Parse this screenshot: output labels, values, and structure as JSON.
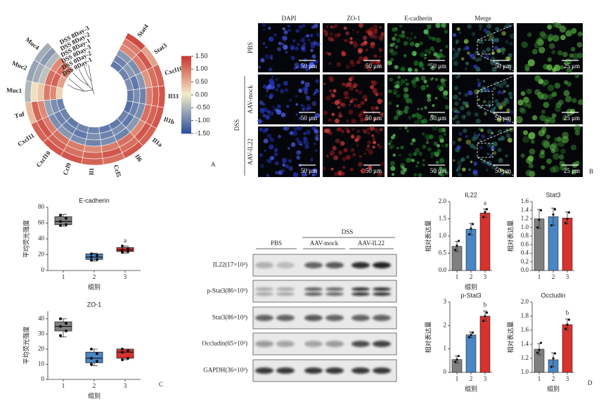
{
  "panel_labels": [
    "A",
    "B",
    "C",
    "D"
  ],
  "microscopy": {
    "columns": [
      "DAPI",
      "ZO-1",
      "E-cadherin",
      "Merge"
    ],
    "rows": [
      "PBS",
      "AAV-mock",
      "AAV-IL22"
    ],
    "group": "DSS",
    "scale_bars": [
      [
        "50 μm",
        "50 μm",
        "50 μm",
        "50 μm",
        "25 μm"
      ],
      [
        "50 μm",
        "50 μm",
        "50 μm",
        "50 μm",
        "25 μm"
      ],
      [
        "50 μm",
        "50 μm",
        "50 μm",
        "50 μm",
        "25 μm"
      ]
    ]
  },
  "western_blot": {
    "groups": [
      "PBS",
      "DSS"
    ],
    "subgroups": [
      "AAV-mock",
      "AAV-IL22"
    ],
    "proteins": [
      "IL22(17×10³)",
      "p-Stat3(86×10³)",
      "Stat3(86×10³)",
      "Occludin(65×10³)",
      "GAPDH(36×10³)"
    ]
  },
  "chart_data": [
    {
      "type": "heatmap",
      "samples": [
        "DSS 8Day-3",
        "DSS 8Day-2",
        "DSS 8Day-1",
        "DSS 0Day-3",
        "DSS 0Day-2",
        "DSS 0Day-1"
      ],
      "genes": [
        "Stat4",
        "Stat3",
        "Cxcl16",
        "Il33",
        "Il1b",
        "Il1a",
        "Il6",
        "Ccl5",
        "Il1",
        "Ccl9",
        "Cxcl10",
        "Cxcl11",
        "Tnf",
        "Muc1",
        "Muc2",
        "Muc4"
      ],
      "values": [
        [
          1.3,
          0.6,
          1.1,
          1.2,
          1.2,
          1.1,
          1.2,
          1.0,
          1.1,
          1.2,
          1.2,
          1.1,
          0.4,
          -0.5,
          -0.7,
          -0.6
        ],
        [
          0.9,
          1.2,
          1.0,
          1.1,
          1.1,
          1.2,
          1.0,
          1.2,
          1.1,
          1.0,
          1.1,
          1.2,
          1.1,
          0.1,
          -0.6,
          -0.8
        ],
        [
          0.8,
          0.9,
          0.7,
          0.9,
          1.0,
          0.8,
          1.0,
          0.9,
          0.8,
          0.9,
          1.0,
          0.9,
          0.8,
          0.3,
          -0.4,
          -0.5
        ],
        [
          -0.8,
          -0.9,
          -0.8,
          -1.0,
          -0.9,
          -0.8,
          -1.0,
          -0.9,
          -1.0,
          -0.9,
          -0.8,
          -0.9,
          -0.7,
          0.9,
          1.0,
          0.8
        ],
        [
          -1.0,
          -0.8,
          -1.1,
          -0.9,
          -1.0,
          -1.1,
          -0.9,
          -1.0,
          -0.9,
          -1.1,
          -1.0,
          -1.0,
          -0.9,
          0.8,
          1.1,
          1.0
        ],
        [
          -1.1,
          -1.0,
          -0.9,
          -1.1,
          -1.2,
          -1.0,
          -1.1,
          -1.1,
          -1.0,
          -1.0,
          -1.1,
          -1.0,
          -1.0,
          0.2,
          0.6,
          0.9
        ]
      ],
      "colors": [
        "#2c4f9e",
        "#f3ecc8",
        "#c8322d"
      ],
      "clim": [
        -1.5,
        1.5
      ],
      "cticks": [
        {
          "value": 1.5,
          "label": "1.50"
        },
        {
          "value": 1,
          "label": "1.00"
        },
        {
          "value": 0.5,
          "label": "0.50"
        },
        {
          "value": 0,
          "label": "0.00"
        },
        {
          "value": -0.5,
          "label": "-0.50"
        },
        {
          "value": -1,
          "label": "-1.00"
        },
        {
          "value": -1.5,
          "label": "-1.50"
        }
      ]
    },
    {
      "type": "box",
      "title": "E-cadherin",
      "y_label": "平均荧光强度",
      "x_label": "组别",
      "categories": [
        "1",
        "2",
        "3"
      ],
      "min": [
        56,
        12,
        22
      ],
      "q1": [
        58,
        14,
        24
      ],
      "median": [
        62,
        17,
        26
      ],
      "q3": [
        68,
        21,
        29
      ],
      "max": [
        71,
        22,
        31
      ],
      "points": [
        [
          70,
          66,
          62,
          58,
          57
        ],
        [
          21,
          19,
          17,
          14,
          13
        ],
        [
          31,
          28,
          26,
          24,
          23
        ]
      ],
      "colors": [
        "#808080",
        "#4a86c5",
        "#d8322f"
      ],
      "annotations": [
        null,
        null,
        "a"
      ],
      "ylim": [
        0,
        80
      ],
      "yticks": [
        0,
        20,
        40,
        60,
        80
      ]
    },
    {
      "type": "box",
      "title": "ZO-1",
      "y_label": "平均荧光强度",
      "x_label": "组别",
      "categories": [
        "1",
        "2",
        "3"
      ],
      "min": [
        28,
        9,
        13
      ],
      "q1": [
        32,
        11,
        14
      ],
      "median": [
        35,
        14,
        18
      ],
      "q3": [
        38,
        18,
        20
      ],
      "max": [
        40,
        20,
        20
      ],
      "points": [
        [
          40,
          37,
          35,
          32,
          29
        ],
        [
          20,
          17,
          14,
          12,
          10
        ],
        [
          20,
          19,
          18,
          14,
          13
        ]
      ],
      "colors": [
        "#808080",
        "#4a86c5",
        "#d8322f"
      ],
      "annotations": [
        null,
        null,
        null
      ],
      "ylim": [
        0,
        45
      ],
      "yticks": [
        0,
        10,
        20,
        30,
        40
      ]
    },
    {
      "type": "bar",
      "title": "IL22",
      "y_label": "相对表达量",
      "x_label": "组别",
      "categories": [
        "1",
        "2",
        "3"
      ],
      "values": [
        0.7,
        1.2,
        1.67
      ],
      "errors": [
        0.15,
        0.17,
        0.12
      ],
      "points": [
        [
          0.6,
          0.72,
          0.86
        ],
        [
          1.05,
          1.22,
          1.35
        ],
        [
          1.55,
          1.7,
          1.78
        ]
      ],
      "colors": [
        "#808080",
        "#4a86c5",
        "#d8322f"
      ],
      "annotations": [
        null,
        null,
        "a"
      ],
      "ylim": [
        0,
        2
      ],
      "yticks": [
        {
          "value": 0,
          "label": "0.0"
        },
        {
          "value": 0.5,
          "label": "0.5"
        },
        {
          "value": 1,
          "label": "1.0"
        },
        {
          "value": 1.5,
          "label": "1.5"
        },
        {
          "value": 2,
          "label": "2.0"
        }
      ]
    },
    {
      "type": "bar",
      "title": "Stat3",
      "y_label": "相对表达量",
      "categories": [
        "1",
        "2",
        "3"
      ],
      "values": [
        1.2,
        1.25,
        1.22
      ],
      "errors": [
        0.22,
        0.2,
        0.14
      ],
      "points": [
        [
          1.0,
          1.18,
          1.4
        ],
        [
          1.05,
          1.3,
          1.42
        ],
        [
          1.1,
          1.2,
          1.35
        ]
      ],
      "colors": [
        "#808080",
        "#4a86c5",
        "#d8322f"
      ],
      "annotations": [
        null,
        null,
        null
      ],
      "ylim": [
        0,
        1.6
      ],
      "yticks": [
        {
          "value": 0,
          "label": "0.0"
        },
        {
          "value": 0.2,
          "label": "0.2"
        },
        {
          "value": 0.4,
          "label": "0.4"
        },
        {
          "value": 0.6,
          "label": "0.6"
        },
        {
          "value": 0.8,
          "label": "0.8"
        },
        {
          "value": 1,
          "label": "1.0"
        },
        {
          "value": 1.2,
          "label": "1.2"
        },
        {
          "value": 1.4,
          "label": "1.4"
        },
        {
          "value": 1.6,
          "label": "1.6"
        }
      ]
    },
    {
      "type": "bar",
      "title": "p-Stat3",
      "y_label": "相对表达量",
      "x_label": "组别",
      "categories": [
        "1",
        "2",
        "3"
      ],
      "values": [
        0.55,
        1.6,
        2.4
      ],
      "errors": [
        0.15,
        0.12,
        0.22
      ],
      "points": [
        [
          0.45,
          0.55,
          0.7
        ],
        [
          1.5,
          1.6,
          1.7
        ],
        [
          2.2,
          2.4,
          2.55
        ]
      ],
      "colors": [
        "#808080",
        "#4a86c5",
        "#d8322f"
      ],
      "annotations": [
        null,
        null,
        "b"
      ],
      "ylim": [
        0,
        3
      ],
      "yticks": [
        0,
        1,
        2,
        3
      ]
    },
    {
      "type": "bar",
      "title": "Occludin",
      "y_label": "相对表达量",
      "x_label": "组别",
      "categories": [
        "1",
        "2",
        "3"
      ],
      "values": [
        1.33,
        1.18,
        1.68
      ],
      "errors": [
        0.08,
        0.1,
        0.08
      ],
      "points": [
        [
          1.28,
          1.32,
          1.42
        ],
        [
          1.08,
          1.2,
          1.27
        ],
        [
          1.62,
          1.68,
          1.75
        ]
      ],
      "colors": [
        "#808080",
        "#4a86c5",
        "#d8322f"
      ],
      "annotations": [
        null,
        null,
        "b"
      ],
      "ylim": [
        1,
        2
      ],
      "yticks": [
        {
          "value": 1,
          "label": "1.0"
        },
        {
          "value": 1.2,
          "label": "1.2"
        },
        {
          "value": 1.4,
          "label": "1.4"
        },
        {
          "value": 1.6,
          "label": "1.6"
        },
        {
          "value": 1.8,
          "label": "1.8"
        },
        {
          "value": 2,
          "label": "2.0"
        }
      ]
    }
  ]
}
